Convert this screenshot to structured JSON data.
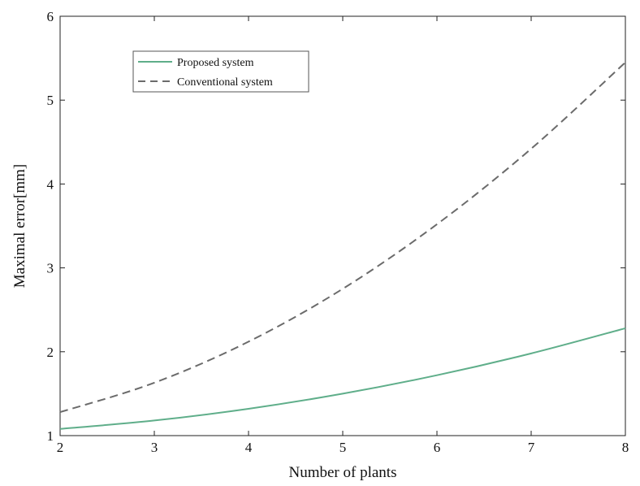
{
  "chart_data": {
    "type": "line",
    "title": "",
    "xlabel": "Number of plants",
    "ylabel": "Maximal error[mm]",
    "xlim": [
      2,
      8
    ],
    "ylim": [
      1,
      6
    ],
    "xticks": [
      "2",
      "3",
      "4",
      "5",
      "6",
      "7",
      "8"
    ],
    "yticks": [
      "1",
      "2",
      "3",
      "4",
      "5",
      "6"
    ],
    "grid": false,
    "legend_position": "top-left",
    "x": [
      2,
      3,
      4,
      5,
      6,
      7,
      8
    ],
    "series": [
      {
        "name": "Proposed system",
        "values": [
          1.08,
          1.18,
          1.32,
          1.5,
          1.72,
          1.98,
          2.28
        ],
        "color": "#5fae8a",
        "style": "solid"
      },
      {
        "name": "Conventional system",
        "values": [
          1.28,
          1.63,
          2.12,
          2.75,
          3.52,
          4.42,
          5.45
        ],
        "color": "#6b6b6b",
        "style": "dashed"
      }
    ]
  }
}
